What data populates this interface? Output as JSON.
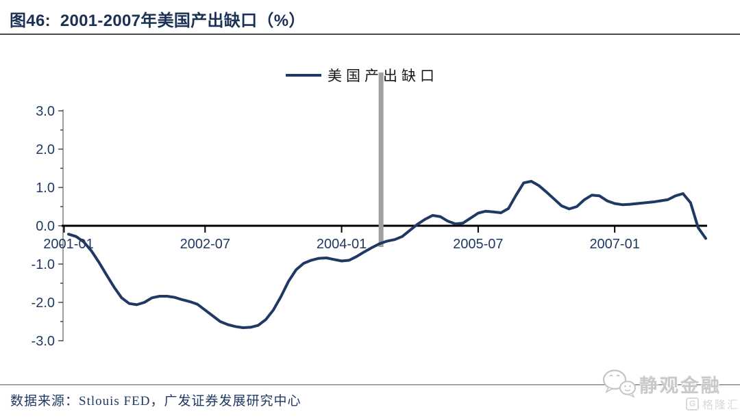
{
  "header": {
    "title": "图46:  2001-2007年美国产出缺口（%）"
  },
  "legend": {
    "label": "美国产出缺口"
  },
  "footer": {
    "source": "数据来源：Stlouis FED，广发证券发展研究中心"
  },
  "watermarks": {
    "wechat_icon": "wechat-icon",
    "wechat_account": "静观金融",
    "platform": "格隆汇",
    "platform_logo_letter": "G"
  },
  "colors": {
    "line": "#1f3864",
    "title": "#1a3055",
    "axis_label": "#1f3864",
    "axis_line": "#7f7f7f",
    "tick": "#404040",
    "zero_line": "#000000",
    "event_bar": "#a1a1a1",
    "watermark": "#c9c9c9"
  },
  "chart_data": {
    "type": "line",
    "title": "2001-2007年美国产出缺口（%）",
    "xlabel": "",
    "ylabel": "",
    "grid": false,
    "legend_position": "top-center",
    "ylim": [
      -3.0,
      3.0
    ],
    "y_ticks": [
      3.0,
      2.0,
      1.0,
      0.0,
      -1.0,
      -2.0,
      -3.0
    ],
    "y_minor_tick_step": 0.5,
    "x_start": "2001-01",
    "x_end": "2008-01",
    "frequency": "monthly",
    "x_ticks": [
      {
        "index": 0,
        "label": "2001-01"
      },
      {
        "index": 18,
        "label": "2002-07"
      },
      {
        "index": 36,
        "label": "2004-01"
      },
      {
        "index": 54,
        "label": "2005-07"
      },
      {
        "index": 72,
        "label": "2007-01"
      }
    ],
    "event_marker": {
      "date": "2004-06",
      "month_index": 41.2
    },
    "series": [
      {
        "name": "美国产出缺口",
        "values": [
          -0.22,
          -0.28,
          -0.42,
          -0.65,
          -0.95,
          -1.28,
          -1.6,
          -1.88,
          -2.03,
          -2.06,
          -2.0,
          -1.88,
          -1.84,
          -1.84,
          -1.87,
          -1.93,
          -1.98,
          -2.05,
          -2.2,
          -2.35,
          -2.5,
          -2.58,
          -2.63,
          -2.66,
          -2.65,
          -2.6,
          -2.45,
          -2.2,
          -1.85,
          -1.45,
          -1.15,
          -0.98,
          -0.9,
          -0.85,
          -0.84,
          -0.88,
          -0.92,
          -0.9,
          -0.8,
          -0.68,
          -0.57,
          -0.47,
          -0.4,
          -0.36,
          -0.28,
          -0.12,
          0.04,
          0.17,
          0.27,
          0.24,
          0.12,
          0.05,
          0.07,
          0.2,
          0.33,
          0.38,
          0.36,
          0.34,
          0.45,
          0.8,
          1.12,
          1.16,
          1.05,
          0.88,
          0.7,
          0.52,
          0.44,
          0.5,
          0.68,
          0.8,
          0.78,
          0.65,
          0.58,
          0.55,
          0.56,
          0.58,
          0.6,
          0.62,
          0.65,
          0.68,
          0.78,
          0.84,
          0.6,
          -0.05,
          -0.33
        ]
      }
    ]
  }
}
